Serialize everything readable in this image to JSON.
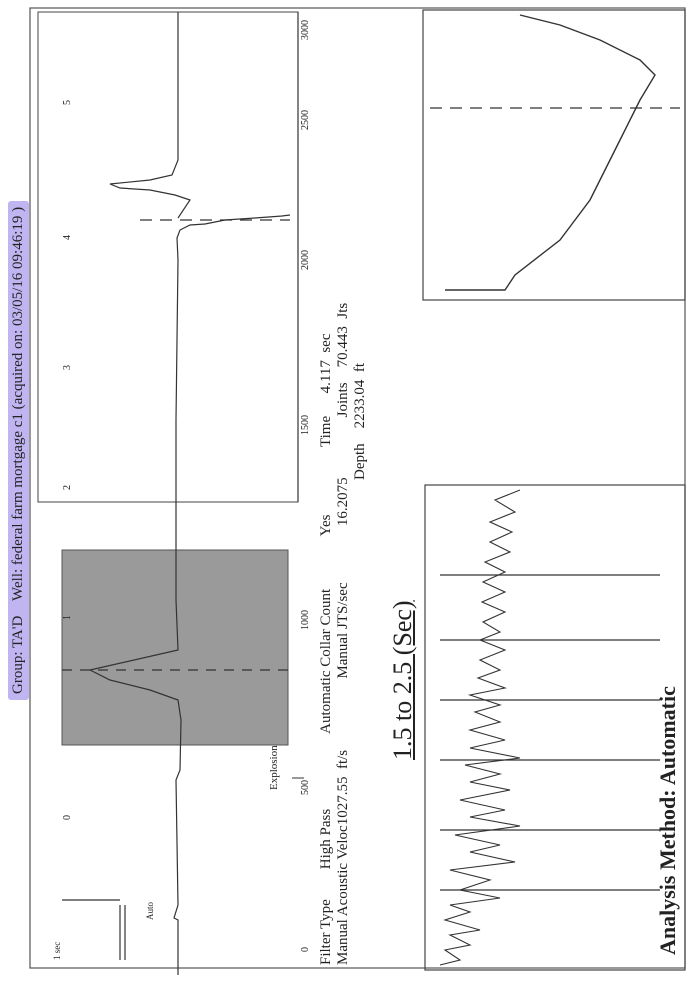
{
  "header": {
    "group": "Group: TA'D",
    "well": "Well: federal farm mortgage c1",
    "acquired": "(acquired on: 03/05/16 09:46:19 )"
  },
  "main_plot": {
    "x_ticks": [
      "0",
      "500",
      "1000",
      "1500",
      "2000",
      "2500",
      "3000"
    ],
    "marker_labels": [
      "0",
      "1",
      "2",
      "3",
      "4",
      "5"
    ],
    "explosion_label": "Explosion",
    "scale_label": "1 sec",
    "aux_label": "Auto"
  },
  "params": {
    "filter_type_label": "Filter Type",
    "filter_type_value": "High Pass",
    "velocity_label": "Manual Acoustic Veloc",
    "velocity_value": "1027.55",
    "velocity_unit": "ft/s",
    "collar_label": "Automatic Collar Count",
    "collar_value": "Yes",
    "jts_label": "Manual JTS/sec",
    "jts_value": "16.2075",
    "time_label": "Time",
    "time_value": "4.117",
    "time_unit": "sec",
    "joints_label": "Joints",
    "joints_value": "70.443",
    "joints_unit": "Jts",
    "depth_label": "Depth",
    "depth_value": "2233.04",
    "depth_unit": "ft"
  },
  "window_label": "1.5  to  2.5 (Sec)",
  "analysis_method": "Analysis Method:  Automatic"
}
